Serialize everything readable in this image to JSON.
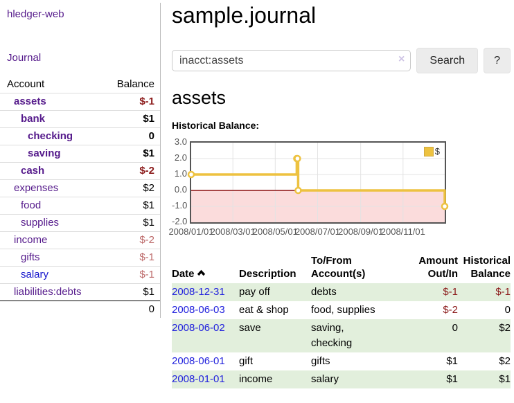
{
  "colors": {
    "link_purple": "#551a8b",
    "link_blue": "#2222dd",
    "negative_dark": "#8b1a1a",
    "negative_light": "#bd6a6a",
    "row_stripe_green": "#e2efdc",
    "button_gray": "#ececec"
  },
  "sidebar": {
    "brand": "hledger-web",
    "nav_journal": "Journal",
    "accounts": {
      "header_account": "Account",
      "header_balance": "Balance",
      "rows": [
        {
          "name": "assets",
          "indent": 1,
          "bold": true,
          "balance": "$-1",
          "balance_tone": "neg-dark"
        },
        {
          "name": "bank",
          "indent": 2,
          "bold": true,
          "balance": "$1",
          "balance_tone": "plain"
        },
        {
          "name": "checking",
          "indent": 3,
          "bold": true,
          "balance": "0",
          "balance_tone": "plain"
        },
        {
          "name": "saving",
          "indent": 3,
          "bold": true,
          "balance": "$1",
          "balance_tone": "plain"
        },
        {
          "name": "cash",
          "indent": 2,
          "bold": true,
          "balance": "$-2",
          "balance_tone": "neg-dark"
        },
        {
          "name": "expenses",
          "indent": 1,
          "bold": false,
          "balance": "$2",
          "balance_tone": "plain"
        },
        {
          "name": "food",
          "indent": 2,
          "bold": false,
          "balance": "$1",
          "balance_tone": "plain"
        },
        {
          "name": "supplies",
          "indent": 2,
          "bold": false,
          "balance": "$1",
          "balance_tone": "plain"
        },
        {
          "name": "income",
          "indent": 1,
          "bold": false,
          "balance": "$-2",
          "balance_tone": "neg-light"
        },
        {
          "name": "gifts",
          "indent": 2,
          "bold": false,
          "balance": "$-1",
          "balance_tone": "neg-light"
        },
        {
          "name": "salary",
          "indent": 2,
          "bold": false,
          "balance": "$-1",
          "balance_tone": "neg-light",
          "link_color": "blue"
        },
        {
          "name": "liabilities:debts",
          "indent": 1,
          "bold": false,
          "balance": "$1",
          "balance_tone": "plain"
        }
      ],
      "total": "0"
    }
  },
  "main": {
    "title": "sample.journal",
    "search": {
      "value": "inacct:assets",
      "clear_icon": "×",
      "button_label": "Search",
      "help_label": "?"
    },
    "section_heading": "assets",
    "chart_label": "Historical Balance:"
  },
  "chart_data": {
    "type": "line",
    "style": "step",
    "title": "Historical Balance:",
    "legend": "$",
    "xlim": [
      "2008-01-01",
      "2008-12-31"
    ],
    "ylim": [
      -2,
      3
    ],
    "yticks": [
      3,
      2,
      1,
      0,
      -1,
      -2
    ],
    "xticks": [
      "2008/01/01",
      "2008/03/01",
      "2008/05/01",
      "2008/07/01",
      "2008/09/01",
      "2008/11/01"
    ],
    "grid": true,
    "legend_position": "top-right",
    "series": [
      {
        "name": "$",
        "points": [
          [
            "2008-01-01",
            1
          ],
          [
            "2008-06-01",
            2
          ],
          [
            "2008-06-02",
            2
          ],
          [
            "2008-06-03",
            0
          ],
          [
            "2008-12-31",
            -1
          ]
        ]
      }
    ],
    "colors": {
      "series": "#edc240",
      "marker_fill": "#ffffff",
      "negative_region": "#fbdcdc",
      "zero_line": "#8b1010",
      "grid": "#e3e3e3",
      "border": "#545454"
    }
  },
  "register_table": {
    "headers": [
      "Date",
      "Description",
      "To/From Account(s)",
      "Amount Out/In",
      "Historical Balance"
    ],
    "rows": [
      {
        "date": "2008-12-31",
        "description": "pay off",
        "accounts": "debts",
        "amount": "$-1",
        "amount_negative": true,
        "balance": "$-1",
        "balance_negative": true
      },
      {
        "date": "2008-06-03",
        "description": "eat & shop",
        "accounts": "food, supplies",
        "amount": "$-2",
        "amount_negative": true,
        "balance": "0",
        "balance_negative": false
      },
      {
        "date": "2008-06-02",
        "description": "save",
        "accounts": "saving,\nchecking",
        "amount": "0",
        "amount_negative": false,
        "balance": "$2",
        "balance_negative": false
      },
      {
        "date": "2008-06-01",
        "description": "gift",
        "accounts": "gifts",
        "amount": "$1",
        "amount_negative": false,
        "balance": "$2",
        "balance_negative": false
      },
      {
        "date": "2008-01-01",
        "description": "income",
        "accounts": "salary",
        "amount": "$1",
        "amount_negative": false,
        "balance": "$1",
        "balance_negative": false
      }
    ]
  }
}
